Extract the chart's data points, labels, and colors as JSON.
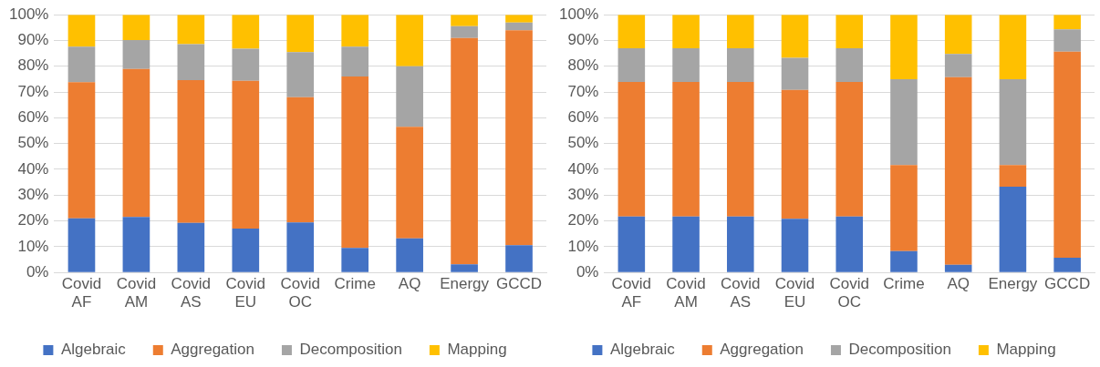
{
  "chart_data": [
    {
      "type": "bar",
      "stacked": true,
      "categories": [
        "Covid AF",
        "Covid AM",
        "Covid AS",
        "Covid EU",
        "Covid OC",
        "Crime",
        "AQ",
        "Energy",
        "GCCD"
      ],
      "series": [
        {
          "name": "Algebraic",
          "color": "#4472c4",
          "values": [
            21,
            21.5,
            19.2,
            17,
            19.4,
            9.5,
            13.2,
            3.2,
            10.6
          ]
        },
        {
          "name": "Aggregation",
          "color": "#ed7d31",
          "values": [
            52.8,
            57.5,
            55.4,
            57.4,
            48.6,
            66.5,
            43.3,
            87.8,
            83.4
          ]
        },
        {
          "name": "Decomposition",
          "color": "#a5a5a5",
          "values": [
            13.8,
            11.2,
            14,
            12.4,
            17.5,
            11.6,
            23.5,
            4.6,
            3
          ]
        },
        {
          "name": "Mapping",
          "color": "#ffc000",
          "values": [
            12.4,
            9.8,
            11.4,
            13.2,
            14.5,
            12.4,
            20,
            4.4,
            3
          ]
        }
      ],
      "ylim": [
        0,
        100
      ],
      "yticks": [
        {
          "value": 0,
          "label": "0%"
        },
        {
          "value": 10,
          "label": "10%"
        },
        {
          "value": 20,
          "label": "20%"
        },
        {
          "value": 30,
          "label": "30%"
        },
        {
          "value": 40,
          "label": "40%"
        },
        {
          "value": 50,
          "label": "50%"
        },
        {
          "value": 60,
          "label": "60%"
        },
        {
          "value": 70,
          "label": "70%"
        },
        {
          "value": 80,
          "label": "80%"
        },
        {
          "value": 90,
          "label": "90%"
        },
        {
          "value": 100,
          "label": "100%"
        }
      ],
      "grid": "y",
      "legend": "bottom"
    },
    {
      "type": "bar",
      "stacked": true,
      "categories": [
        "Covid AF",
        "Covid AM",
        "Covid AS",
        "Covid EU",
        "Covid OC",
        "Crime",
        "AQ",
        "Energy",
        "GCCD"
      ],
      "series": [
        {
          "name": "Algebraic",
          "color": "#4472c4",
          "values": [
            21.7,
            21.7,
            21.7,
            20.8,
            21.7,
            8.3,
            3,
            33.3,
            5.7
          ]
        },
        {
          "name": "Aggregation",
          "color": "#ed7d31",
          "values": [
            52.2,
            52.2,
            52.2,
            50,
            52.2,
            33.4,
            72.8,
            8.4,
            80
          ]
        },
        {
          "name": "Decomposition",
          "color": "#a5a5a5",
          "values": [
            13.1,
            13.1,
            13.1,
            12.5,
            13.1,
            33.3,
            9,
            33.3,
            8.6
          ]
        },
        {
          "name": "Mapping",
          "color": "#ffc000",
          "values": [
            13,
            13,
            13,
            16.7,
            13,
            25,
            15.2,
            25,
            5.7
          ]
        }
      ],
      "ylim": [
        0,
        100
      ],
      "yticks": [
        {
          "value": 0,
          "label": "0%"
        },
        {
          "value": 10,
          "label": "10%"
        },
        {
          "value": 20,
          "label": "20%"
        },
        {
          "value": 30,
          "label": "30%"
        },
        {
          "value": 40,
          "label": "40%"
        },
        {
          "value": 50,
          "label": "50%"
        },
        {
          "value": 60,
          "label": "60%"
        },
        {
          "value": 70,
          "label": "70%"
        },
        {
          "value": 80,
          "label": "80%"
        },
        {
          "value": 90,
          "label": "90%"
        },
        {
          "value": 100,
          "label": "100%"
        }
      ],
      "grid": "y",
      "legend": "bottom"
    }
  ]
}
